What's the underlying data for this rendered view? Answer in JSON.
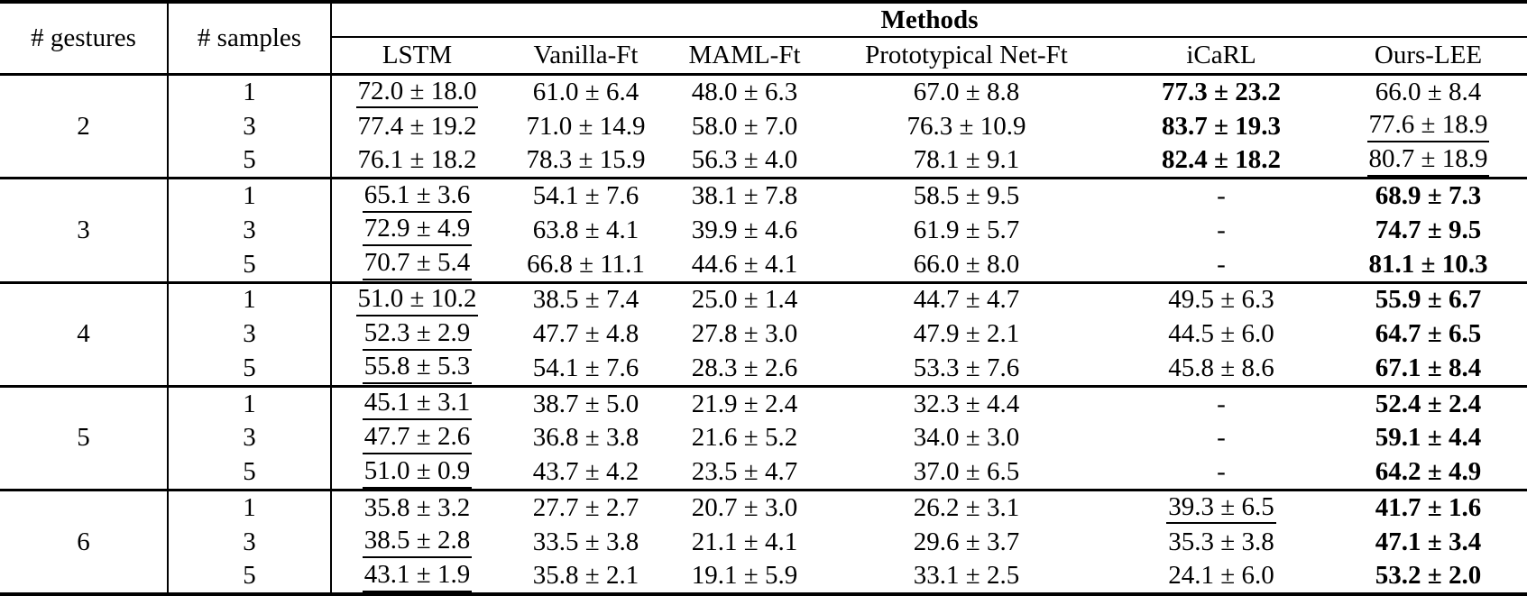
{
  "colors": {
    "background": "#ffffff",
    "text": "#000000",
    "border": "#000000"
  },
  "table": {
    "header": {
      "gestures_label": "# gestures",
      "samples_label": "# samples",
      "methods_label": "Methods",
      "methods": [
        "LSTM",
        "Vanilla-Ft",
        "MAML-Ft",
        "Prototypical Net-Ft",
        "iCaRL",
        "Ours-LEE"
      ]
    },
    "style_legend": {
      "b": "bold",
      "u": "underline",
      "": "plain"
    },
    "groups": [
      {
        "gestures": "2",
        "rows": [
          {
            "samples": "1",
            "values": [
              "72.0 ± 18.0",
              "61.0 ± 6.4",
              "48.0 ± 6.3",
              "67.0 ± 8.8",
              "77.3 ± 23.2",
              "66.0 ± 8.4"
            ],
            "styles": [
              "u",
              "",
              "",
              "",
              "b",
              ""
            ]
          },
          {
            "samples": "3",
            "values": [
              "77.4 ± 19.2",
              "71.0 ± 14.9",
              "58.0 ± 7.0",
              "76.3 ± 10.9",
              "83.7 ± 19.3",
              "77.6 ± 18.9"
            ],
            "styles": [
              "",
              "",
              "",
              "",
              "b",
              "u"
            ]
          },
          {
            "samples": "5",
            "values": [
              "76.1 ± 18.2",
              "78.3 ± 15.9",
              "56.3 ± 4.0",
              "78.1 ± 9.1",
              "82.4 ± 18.2",
              "80.7 ± 18.9"
            ],
            "styles": [
              "",
              "",
              "",
              "",
              "b",
              "u"
            ]
          }
        ]
      },
      {
        "gestures": "3",
        "rows": [
          {
            "samples": "1",
            "values": [
              "65.1 ± 3.6",
              "54.1 ± 7.6",
              "38.1 ± 7.8",
              "58.5 ± 9.5",
              "-",
              "68.9 ± 7.3"
            ],
            "styles": [
              "u",
              "",
              "",
              "",
              "",
              "b"
            ]
          },
          {
            "samples": "3",
            "values": [
              "72.9 ± 4.9",
              "63.8 ± 4.1",
              "39.9 ± 4.6",
              "61.9 ± 5.7",
              "-",
              "74.7 ± 9.5"
            ],
            "styles": [
              "u",
              "",
              "",
              "",
              "",
              "b"
            ]
          },
          {
            "samples": "5",
            "values": [
              "70.7 ± 5.4",
              "66.8 ± 11.1",
              "44.6 ± 4.1",
              "66.0 ± 8.0",
              "-",
              "81.1 ± 10.3"
            ],
            "styles": [
              "u",
              "",
              "",
              "",
              "",
              "b"
            ]
          }
        ]
      },
      {
        "gestures": "4",
        "rows": [
          {
            "samples": "1",
            "values": [
              "51.0 ± 10.2",
              "38.5 ± 7.4",
              "25.0 ± 1.4",
              "44.7 ± 4.7",
              "49.5 ± 6.3",
              "55.9 ± 6.7"
            ],
            "styles": [
              "u",
              "",
              "",
              "",
              "",
              "b"
            ]
          },
          {
            "samples": "3",
            "values": [
              "52.3 ± 2.9",
              "47.7 ± 4.8",
              "27.8 ± 3.0",
              "47.9 ± 2.1",
              "44.5 ± 6.0",
              "64.7 ± 6.5"
            ],
            "styles": [
              "u",
              "",
              "",
              "",
              "",
              "b"
            ]
          },
          {
            "samples": "5",
            "values": [
              "55.8 ± 5.3",
              "54.1 ± 7.6",
              "28.3 ± 2.6",
              "53.3 ± 7.6",
              "45.8 ± 8.6",
              "67.1 ± 8.4"
            ],
            "styles": [
              "u",
              "",
              "",
              "",
              "",
              "b"
            ]
          }
        ]
      },
      {
        "gestures": "5",
        "rows": [
          {
            "samples": "1",
            "values": [
              "45.1 ± 3.1",
              "38.7 ± 5.0",
              "21.9 ± 2.4",
              "32.3 ± 4.4",
              "-",
              "52.4 ± 2.4"
            ],
            "styles": [
              "u",
              "",
              "",
              "",
              "",
              "b"
            ]
          },
          {
            "samples": "3",
            "values": [
              "47.7 ± 2.6",
              "36.8 ± 3.8",
              "21.6 ± 5.2",
              "34.0 ± 3.0",
              "-",
              "59.1 ± 4.4"
            ],
            "styles": [
              "u",
              "",
              "",
              "",
              "",
              "b"
            ]
          },
          {
            "samples": "5",
            "values": [
              "51.0 ± 0.9",
              "43.7 ± 4.2",
              "23.5 ± 4.7",
              "37.0 ± 6.5",
              "-",
              "64.2 ± 4.9"
            ],
            "styles": [
              "u",
              "",
              "",
              "",
              "",
              "b"
            ]
          }
        ]
      },
      {
        "gestures": "6",
        "rows": [
          {
            "samples": "1",
            "values": [
              "35.8 ± 3.2",
              "27.7 ± 2.7",
              "20.7 ± 3.0",
              "26.2 ± 3.1",
              "39.3 ± 6.5",
              "41.7 ± 1.6"
            ],
            "styles": [
              "",
              "",
              "",
              "",
              "u",
              "b"
            ]
          },
          {
            "samples": "3",
            "values": [
              "38.5 ± 2.8",
              "33.5 ± 3.8",
              "21.1 ± 4.1",
              "29.6 ± 3.7",
              "35.3 ± 3.8",
              "47.1 ± 3.4"
            ],
            "styles": [
              "u",
              "",
              "",
              "",
              "",
              "b"
            ]
          },
          {
            "samples": "5",
            "values": [
              "43.1 ± 1.9",
              "35.8 ± 2.1",
              "19.1 ± 5.9",
              "33.1 ± 2.5",
              "24.1 ± 6.0",
              "53.2 ± 2.0"
            ],
            "styles": [
              "u",
              "",
              "",
              "",
              "",
              "b"
            ]
          }
        ]
      }
    ]
  }
}
